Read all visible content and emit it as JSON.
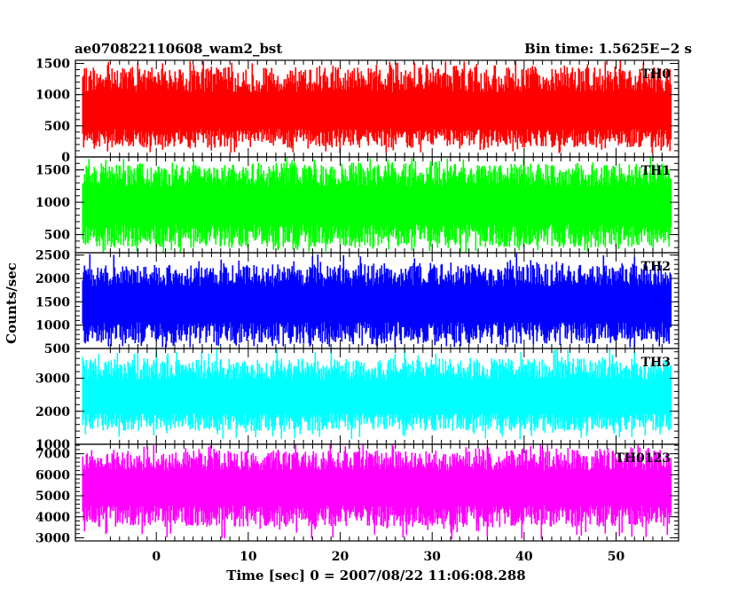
{
  "chart_data": {
    "type": "line",
    "title_left": "ae070822110608_wam2_bst",
    "title_right": "Bin time: 1.5625E−2 s",
    "xlabel": "Time [sec] 0 = 2007/08/22 11:06:08.288",
    "ylabel": "Counts/sec",
    "xlim": [
      -8.8,
      56.8
    ],
    "x_data_range": [
      -8,
      56
    ],
    "x_ticks": [
      0,
      10,
      20,
      30,
      40,
      50
    ],
    "x_tick_labels": [
      "0",
      "10",
      "20",
      "30",
      "40",
      "50"
    ],
    "grid": false,
    "legend": "none",
    "panels": [
      {
        "name": "TH0",
        "color": "#ff0000",
        "ylim": [
          0,
          1550
        ],
        "y_ticks": [
          0,
          500,
          1000,
          1500
        ],
        "y_tick_labels": [
          "0",
          "500",
          "1000",
          "1500"
        ],
        "mean": 700,
        "typical_range": [
          150,
          1450
        ],
        "extreme_range": [
          60,
          1550
        ]
      },
      {
        "name": "TH1",
        "color": "#00ff00",
        "ylim": [
          220,
          1700
        ],
        "y_ticks": [
          500,
          1000,
          1500
        ],
        "y_tick_labels": [
          "500",
          "1000",
          "1500"
        ],
        "mean": 950,
        "typical_range": [
          300,
          1600
        ],
        "extreme_range": [
          220,
          1700
        ]
      },
      {
        "name": "TH2",
        "color": "#0000ff",
        "ylim": [
          500,
          2550
        ],
        "y_ticks": [
          500,
          1000,
          1500,
          2000,
          2500
        ],
        "y_tick_labels": [
          "500",
          "1000",
          "1500",
          "2000",
          "2500"
        ],
        "mean": 1450,
        "typical_range": [
          600,
          2300
        ],
        "extreme_range": [
          520,
          2550
        ]
      },
      {
        "name": "TH3",
        "color": "#00ffff",
        "ylim": [
          1000,
          3900
        ],
        "y_ticks": [
          1000,
          2000,
          3000
        ],
        "y_tick_labels": [
          "1000",
          "2000",
          "3000"
        ],
        "mean": 2400,
        "typical_range": [
          1400,
          3600
        ],
        "extreme_range": [
          1150,
          3900
        ]
      },
      {
        "name": "TH0123",
        "color": "#ff00ff",
        "ylim": [
          2850,
          7450
        ],
        "y_ticks": [
          3000,
          4000,
          5000,
          6000,
          7000
        ],
        "y_tick_labels": [
          "3000",
          "4000",
          "5000",
          "6000",
          "7000"
        ],
        "mean": 5400,
        "typical_range": [
          3500,
          7200
        ],
        "extreme_range": [
          2900,
          7450
        ]
      }
    ]
  }
}
